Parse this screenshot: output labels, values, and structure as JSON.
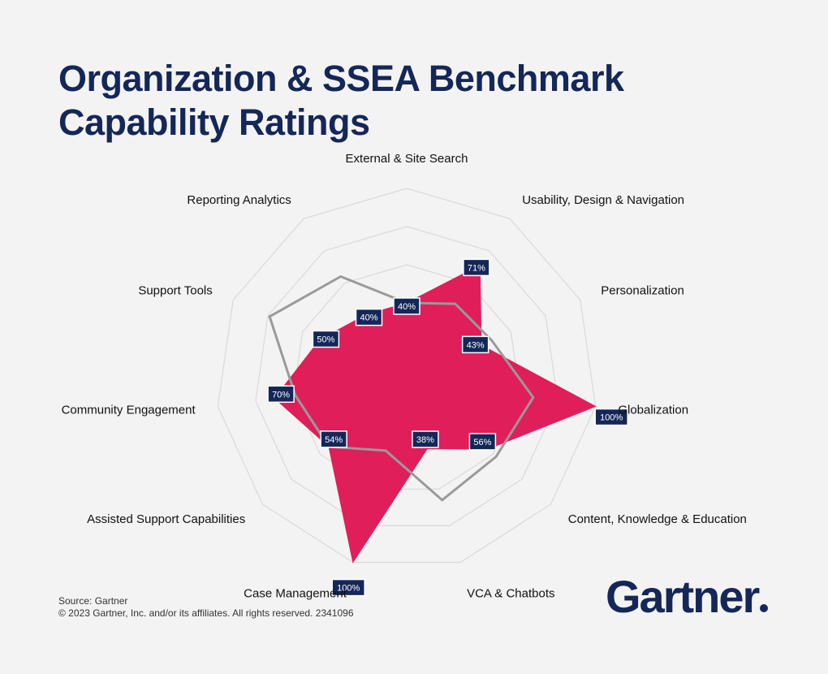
{
  "title": {
    "line1": "Organization & SSEA Benchmark",
    "line2": "Capability Ratings"
  },
  "chart_data": {
    "type": "radar",
    "categories": [
      "External & Site Search",
      "Usability, Design & Navigation",
      "Personalization",
      "Globalization",
      "Content, Knowledge & Education",
      "VCA & Chatbots",
      "Case Management",
      "Assisted Support Capabilities",
      "Community Engagement",
      "Support Tools",
      "Reporting Analytics"
    ],
    "rmax": 100,
    "grid_levels": [
      20,
      40,
      60,
      80,
      100
    ],
    "series": [
      {
        "color": "#e01e5a",
        "fill": true,
        "values": [
          40,
          71,
          43,
          100,
          56,
          38,
          100,
          54,
          70,
          50,
          40
        ],
        "labels": [
          "40%",
          "71%",
          "43%",
          "100%",
          "56%",
          "38%",
          "100%",
          "54%",
          "70%",
          "50%",
          "40%"
        ]
      },
      {
        "color": "#9a9a9a",
        "fill": false,
        "values": [
          40,
          47,
          49,
          67,
          62,
          66,
          39,
          54,
          59,
          79,
          64
        ]
      }
    ]
  },
  "footer": {
    "source": "Source: Gartner",
    "copyright": "© 2023 Gartner, Inc. and/or its affiliates. All rights reserved. 2341096"
  },
  "logo": {
    "text": "Gartner"
  }
}
